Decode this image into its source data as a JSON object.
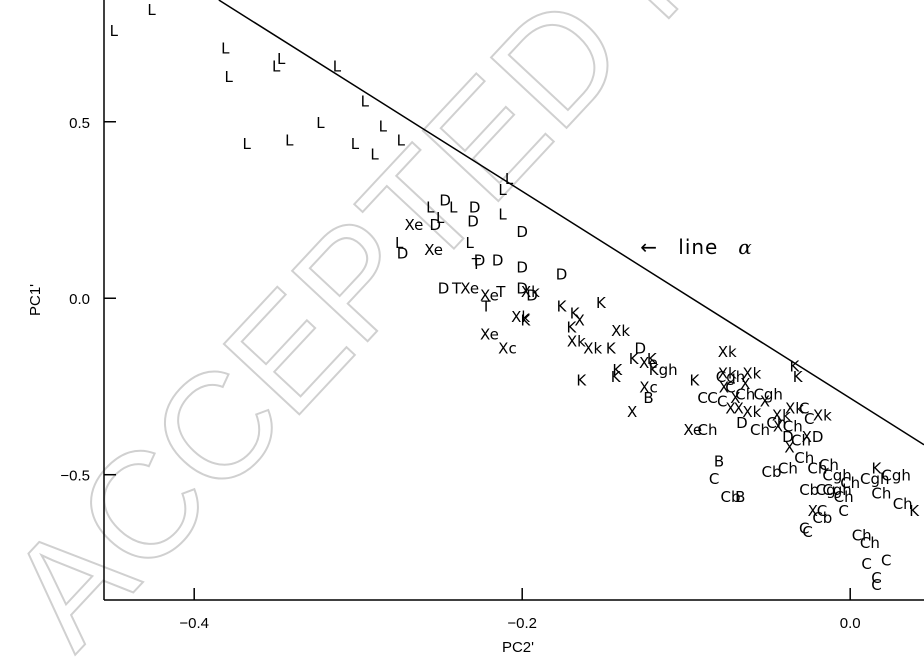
{
  "watermark": "ACCEPTED MANUSCRIPT",
  "chart_data": {
    "type": "scatter",
    "title": "",
    "xlabel": "PC2'",
    "ylabel": "PC1'",
    "xlim": [
      -0.455,
      0.045
    ],
    "ylim": [
      -0.855,
      0.845
    ],
    "x_ticks": [
      -0.4,
      -0.2,
      0.0
    ],
    "x_tick_labels": [
      "−0.4",
      "−0.2",
      "0.0"
    ],
    "y_ticks": [
      -0.5,
      0.0,
      0.5
    ],
    "y_tick_labels": [
      "−0.5",
      "0.0",
      "0.5"
    ],
    "grid": false,
    "line": {
      "name": "line α",
      "points": [
        [
          -0.385,
          0.845
        ],
        [
          0.045,
          -0.415
        ]
      ]
    },
    "annotation": {
      "arrow": "←",
      "text": "line",
      "greek": "α",
      "x": -0.128,
      "y": 0.145
    },
    "points": [
      {
        "x": -0.449,
        "y": 0.76,
        "label": "L"
      },
      {
        "x": -0.426,
        "y": 0.82,
        "label": "L"
      },
      {
        "x": -0.381,
        "y": 0.71,
        "label": "L"
      },
      {
        "x": -0.379,
        "y": 0.63,
        "label": "L"
      },
      {
        "x": -0.35,
        "y": 0.66,
        "label": "L"
      },
      {
        "x": -0.347,
        "y": 0.68,
        "label": "L"
      },
      {
        "x": -0.313,
        "y": 0.66,
        "label": "L"
      },
      {
        "x": -0.296,
        "y": 0.56,
        "label": "L"
      },
      {
        "x": -0.323,
        "y": 0.5,
        "label": "L"
      },
      {
        "x": -0.285,
        "y": 0.49,
        "label": "L"
      },
      {
        "x": -0.368,
        "y": 0.44,
        "label": "L"
      },
      {
        "x": -0.342,
        "y": 0.45,
        "label": "L"
      },
      {
        "x": -0.302,
        "y": 0.44,
        "label": "L"
      },
      {
        "x": -0.29,
        "y": 0.41,
        "label": "L"
      },
      {
        "x": -0.274,
        "y": 0.45,
        "label": "L"
      },
      {
        "x": -0.275,
        "y": 0.16,
        "label": "L"
      },
      {
        "x": -0.25,
        "y": 0.23,
        "label": "L"
      },
      {
        "x": -0.242,
        "y": 0.26,
        "label": "L"
      },
      {
        "x": -0.232,
        "y": 0.16,
        "label": "L"
      },
      {
        "x": -0.212,
        "y": 0.31,
        "label": "L"
      },
      {
        "x": -0.212,
        "y": 0.24,
        "label": "L"
      },
      {
        "x": -0.208,
        "y": 0.34,
        "label": "L"
      },
      {
        "x": -0.256,
        "y": 0.26,
        "label": "L"
      },
      {
        "x": -0.247,
        "y": 0.28,
        "label": "D"
      },
      {
        "x": -0.229,
        "y": 0.26,
        "label": "D"
      },
      {
        "x": -0.2,
        "y": 0.19,
        "label": "D"
      },
      {
        "x": -0.226,
        "y": 0.11,
        "label": "D"
      },
      {
        "x": -0.215,
        "y": 0.11,
        "label": "D"
      },
      {
        "x": -0.2,
        "y": 0.09,
        "label": "D"
      },
      {
        "x": -0.176,
        "y": 0.07,
        "label": "D"
      },
      {
        "x": -0.273,
        "y": 0.13,
        "label": "D"
      },
      {
        "x": -0.23,
        "y": 0.22,
        "label": "D"
      },
      {
        "x": -0.248,
        "y": 0.03,
        "label": "D"
      },
      {
        "x": -0.2,
        "y": 0.03,
        "label": "D"
      },
      {
        "x": -0.194,
        "y": 0.01,
        "label": "D"
      },
      {
        "x": -0.128,
        "y": -0.14,
        "label": "D"
      },
      {
        "x": -0.266,
        "y": 0.21,
        "label": "Xe"
      },
      {
        "x": -0.253,
        "y": 0.21,
        "label": "D"
      },
      {
        "x": -0.254,
        "y": 0.14,
        "label": "Xe"
      },
      {
        "x": -0.232,
        "y": 0.03,
        "label": "Xe"
      },
      {
        "x": -0.22,
        "y": 0.01,
        "label": "Xe"
      },
      {
        "x": -0.22,
        "y": -0.1,
        "label": "Xe"
      },
      {
        "x": -0.123,
        "y": -0.18,
        "label": "Xe"
      },
      {
        "x": -0.096,
        "y": -0.37,
        "label": "Xe"
      },
      {
        "x": -0.228,
        "y": 0.1,
        "label": "T"
      },
      {
        "x": -0.24,
        "y": 0.03,
        "label": "T"
      },
      {
        "x": -0.222,
        "y": -0.02,
        "label": "T"
      },
      {
        "x": -0.213,
        "y": 0.02,
        "label": "T"
      },
      {
        "x": -0.209,
        "y": -0.14,
        "label": "Xc"
      },
      {
        "x": -0.195,
        "y": 0.02,
        "label": "Xk"
      },
      {
        "x": -0.201,
        "y": -0.05,
        "label": "Xk"
      },
      {
        "x": -0.167,
        "y": -0.12,
        "label": "Xk"
      },
      {
        "x": -0.14,
        "y": -0.09,
        "label": "Xk"
      },
      {
        "x": -0.157,
        "y": -0.14,
        "label": "Xk"
      },
      {
        "x": -0.075,
        "y": -0.15,
        "label": "Xk"
      },
      {
        "x": -0.075,
        "y": -0.21,
        "label": "Xk"
      },
      {
        "x": -0.06,
        "y": -0.21,
        "label": "Xk"
      },
      {
        "x": -0.034,
        "y": -0.31,
        "label": "Xk"
      },
      {
        "x": -0.017,
        "y": -0.33,
        "label": "Xk"
      },
      {
        "x": -0.042,
        "y": -0.33,
        "label": "Xk"
      },
      {
        "x": -0.198,
        "y": -0.06,
        "label": "K"
      },
      {
        "x": -0.176,
        "y": -0.02,
        "label": "K"
      },
      {
        "x": -0.168,
        "y": -0.04,
        "label": "K"
      },
      {
        "x": -0.17,
        "y": -0.08,
        "label": "K"
      },
      {
        "x": -0.165,
        "y": -0.06,
        "label": "X"
      },
      {
        "x": -0.152,
        "y": -0.01,
        "label": "K"
      },
      {
        "x": -0.146,
        "y": -0.14,
        "label": "K"
      },
      {
        "x": -0.142,
        "y": -0.2,
        "label": "K"
      },
      {
        "x": -0.143,
        "y": -0.22,
        "label": "K"
      },
      {
        "x": -0.132,
        "y": -0.17,
        "label": "K"
      },
      {
        "x": -0.121,
        "y": -0.17,
        "label": "K"
      },
      {
        "x": -0.114,
        "y": -0.2,
        "label": "Kgh"
      },
      {
        "x": -0.164,
        "y": -0.23,
        "label": "K"
      },
      {
        "x": -0.095,
        "y": -0.23,
        "label": "K"
      },
      {
        "x": -0.123,
        "y": -0.25,
        "label": "Xc"
      },
      {
        "x": -0.123,
        "y": -0.28,
        "label": "B"
      },
      {
        "x": -0.133,
        "y": -0.32,
        "label": "X"
      },
      {
        "x": -0.073,
        "y": -0.22,
        "label": "Cgh"
      },
      {
        "x": -0.073,
        "y": -0.25,
        "label": "C"
      },
      {
        "x": -0.064,
        "y": -0.24,
        "label": "X"
      },
      {
        "x": -0.073,
        "y": -0.31,
        "label": "X"
      },
      {
        "x": -0.068,
        "y": -0.31,
        "label": "X"
      },
      {
        "x": -0.066,
        "y": -0.35,
        "label": "D"
      },
      {
        "x": -0.06,
        "y": -0.32,
        "label": "Xk"
      },
      {
        "x": -0.052,
        "y": -0.29,
        "label": "X"
      },
      {
        "x": -0.055,
        "y": -0.37,
        "label": "Ch"
      },
      {
        "x": -0.05,
        "y": -0.27,
        "label": "Cgh"
      },
      {
        "x": -0.045,
        "y": -0.35,
        "label": "Ch"
      },
      {
        "x": -0.044,
        "y": -0.36,
        "label": "X"
      },
      {
        "x": -0.038,
        "y": -0.39,
        "label": "D"
      },
      {
        "x": -0.035,
        "y": -0.36,
        "label": "Ch"
      },
      {
        "x": -0.03,
        "y": -0.4,
        "label": "Ch"
      },
      {
        "x": -0.023,
        "y": -0.39,
        "label": "XD"
      },
      {
        "x": -0.025,
        "y": -0.34,
        "label": "C"
      },
      {
        "x": -0.028,
        "y": -0.31,
        "label": "C"
      },
      {
        "x": -0.037,
        "y": -0.42,
        "label": "X"
      },
      {
        "x": -0.034,
        "y": -0.19,
        "label": "K"
      },
      {
        "x": -0.032,
        "y": -0.22,
        "label": "K"
      },
      {
        "x": -0.064,
        "y": -0.27,
        "label": "Ch"
      },
      {
        "x": -0.078,
        "y": -0.29,
        "label": "C"
      },
      {
        "x": -0.084,
        "y": -0.28,
        "label": "C"
      },
      {
        "x": -0.09,
        "y": -0.28,
        "label": "C"
      },
      {
        "x": -0.07,
        "y": -0.28,
        "label": "X"
      },
      {
        "x": -0.077,
        "y": -0.25,
        "label": "X"
      },
      {
        "x": -0.087,
        "y": -0.37,
        "label": "Ch"
      },
      {
        "x": -0.08,
        "y": -0.46,
        "label": "B"
      },
      {
        "x": -0.083,
        "y": -0.51,
        "label": "C"
      },
      {
        "x": -0.073,
        "y": -0.56,
        "label": "Cb"
      },
      {
        "x": -0.067,
        "y": -0.56,
        "label": "B"
      },
      {
        "x": -0.048,
        "y": -0.49,
        "label": "Cb"
      },
      {
        "x": -0.038,
        "y": -0.48,
        "label": "Ch"
      },
      {
        "x": -0.028,
        "y": -0.45,
        "label": "Ch"
      },
      {
        "x": -0.02,
        "y": -0.48,
        "label": "Ch"
      },
      {
        "x": -0.013,
        "y": -0.47,
        "label": "Ch"
      },
      {
        "x": -0.008,
        "y": -0.5,
        "label": "Cgh"
      },
      {
        "x": -0.025,
        "y": -0.54,
        "label": "Cb"
      },
      {
        "x": -0.015,
        "y": -0.54,
        "label": "Cg"
      },
      {
        "x": -0.008,
        "y": -0.54,
        "label": "Cgh"
      },
      {
        "x": -0.004,
        "y": -0.56,
        "label": "Ch"
      },
      {
        "x": 0.0,
        "y": -0.52,
        "label": "Ch"
      },
      {
        "x": -0.02,
        "y": -0.6,
        "label": "XC"
      },
      {
        "x": -0.017,
        "y": -0.62,
        "label": "Cb"
      },
      {
        "x": -0.004,
        "y": -0.6,
        "label": "C"
      },
      {
        "x": -0.028,
        "y": -0.65,
        "label": "C"
      },
      {
        "x": -0.026,
        "y": -0.66,
        "label": "C"
      },
      {
        "x": 0.015,
        "y": -0.51,
        "label": "Cgh"
      },
      {
        "x": 0.019,
        "y": -0.55,
        "label": "Ch"
      },
      {
        "x": 0.016,
        "y": -0.48,
        "label": "K"
      },
      {
        "x": 0.028,
        "y": -0.5,
        "label": "Cgh"
      },
      {
        "x": 0.032,
        "y": -0.58,
        "label": "Ch"
      },
      {
        "x": 0.039,
        "y": -0.6,
        "label": "K"
      },
      {
        "x": 0.007,
        "y": -0.67,
        "label": "Ch"
      },
      {
        "x": 0.012,
        "y": -0.69,
        "label": "Ch"
      },
      {
        "x": 0.01,
        "y": -0.75,
        "label": "C"
      },
      {
        "x": 0.022,
        "y": -0.74,
        "label": "C"
      },
      {
        "x": 0.016,
        "y": -0.79,
        "label": "C"
      },
      {
        "x": 0.016,
        "y": -0.81,
        "label": "C"
      }
    ]
  }
}
